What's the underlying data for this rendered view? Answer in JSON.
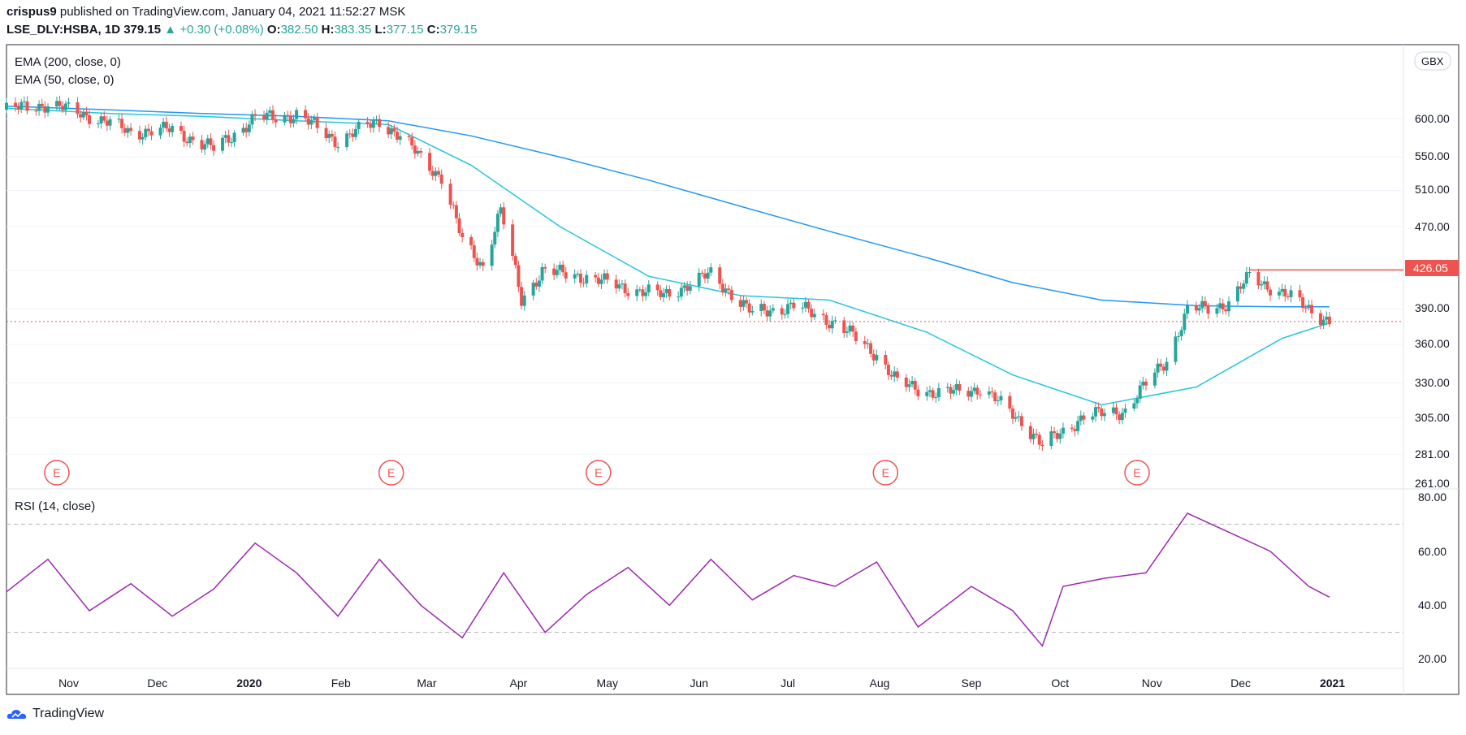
{
  "header": {
    "author": "crispus9",
    "published_text": "published on TradingView.com, January 04, 2021 11:52:27 MSK",
    "symbol": "LSE_DLY:HSBA, 1D",
    "last": "379.15",
    "change_arrow": "▲",
    "change": "+0.30 (+0.08%)",
    "o_label": "O:",
    "o_value": "382.50",
    "h_label": "H:",
    "h_value": "383.35",
    "l_label": "L:",
    "l_value": "377.15",
    "c_label": "C:",
    "c_value": "379.15"
  },
  "price_pane": {
    "legend": [
      "EMA (200, close, 0)",
      "EMA (50, close, 0)"
    ],
    "currency": "GBX",
    "y_ticks": [
      "600.00",
      "550.00",
      "510.00",
      "470.00",
      "390.00",
      "360.00",
      "330.00",
      "305.00",
      "281.00",
      "261.00"
    ],
    "last_price_tag": "426.05",
    "earnings_marker": "E"
  },
  "rsi_pane": {
    "legend": "RSI (14, close)",
    "y_ticks": [
      "80.00",
      "60.00",
      "40.00",
      "20.00"
    ]
  },
  "x_axis": [
    "Nov",
    "Dec",
    "2020",
    "Feb",
    "Mar",
    "Apr",
    "May",
    "Jun",
    "Jul",
    "Aug",
    "Sep",
    "Oct",
    "Nov",
    "Dec",
    "2021"
  ],
  "footer": {
    "brand": "TradingView"
  },
  "colors": {
    "up": "#26a69a",
    "down": "#ef5350",
    "ema200": "#2196f3",
    "ema50": "#26c6da",
    "rsi": "#9c27b0",
    "earnings": "#ef5350",
    "price_line": "#ef5350"
  },
  "chart_data": {
    "type": "candlestick",
    "scale": "log",
    "ylim": [
      261,
      640
    ],
    "rsi_ylim": [
      20,
      80
    ],
    "rsi_bands": [
      70,
      30
    ],
    "x_range": [
      "2019-10-11",
      "2021-01-25"
    ],
    "last_close": 379.15,
    "horizontal_line": 426.05,
    "earnings_dates": [
      "2019-10-28",
      "2020-02-18",
      "2020-04-28",
      "2020-08-03",
      "2020-10-27"
    ],
    "series": [
      {
        "name": "EMA (200, close, 0)",
        "dates": [
          "2019-10-11",
          "2019-11-15",
          "2019-12-16",
          "2020-01-17",
          "2020-02-17",
          "2020-03-16",
          "2020-04-15",
          "2020-05-15",
          "2020-06-15",
          "2020-07-15",
          "2020-08-17",
          "2020-09-15",
          "2020-10-15",
          "2020-11-16",
          "2020-12-15",
          "2020-12-31"
        ],
        "values": [
          617,
          612,
          607,
          603,
          597,
          577,
          550,
          522,
          492,
          465,
          438,
          414,
          398,
          393,
          392,
          392
        ]
      },
      {
        "name": "EMA (50, close, 0)",
        "dates": [
          "2019-10-11",
          "2019-11-15",
          "2019-12-16",
          "2020-01-17",
          "2020-02-17",
          "2020-03-16",
          "2020-04-15",
          "2020-05-15",
          "2020-06-15",
          "2020-07-15",
          "2020-08-17",
          "2020-09-15",
          "2020-10-15",
          "2020-11-16",
          "2020-12-15",
          "2020-12-31"
        ],
        "values": [
          614,
          607,
          603,
          597,
          592,
          540,
          470,
          420,
          402,
          398,
          370,
          336,
          314,
          327,
          365,
          378
        ]
      },
      {
        "name": "RSI (14, close)",
        "dates": [
          "2019-10-11",
          "2019-10-25",
          "2019-11-08",
          "2019-11-22",
          "2019-12-06",
          "2019-12-20",
          "2020-01-03",
          "2020-01-17",
          "2020-01-31",
          "2020-02-14",
          "2020-02-28",
          "2020-03-13",
          "2020-03-27",
          "2020-04-10",
          "2020-04-24",
          "2020-05-08",
          "2020-05-22",
          "2020-06-05",
          "2020-06-19",
          "2020-07-03",
          "2020-07-17",
          "2020-07-31",
          "2020-08-14",
          "2020-09-01",
          "2020-09-15",
          "2020-09-25",
          "2020-10-02",
          "2020-10-16",
          "2020-10-30",
          "2020-11-13",
          "2020-11-27",
          "2020-12-11",
          "2020-12-24",
          "2020-12-31"
        ],
        "values": [
          45,
          57,
          38,
          48,
          36,
          46,
          63,
          52,
          36,
          57,
          40,
          28,
          52,
          30,
          44,
          54,
          40,
          57,
          42,
          51,
          47,
          56,
          32,
          47,
          38,
          25,
          47,
          50,
          52,
          74,
          67,
          60,
          47,
          43
        ]
      },
      {
        "name": "Daily close",
        "dates": [
          "2019-10-11",
          "2019-10-25",
          "2019-11-08",
          "2019-11-22",
          "2019-12-06",
          "2019-12-20",
          "2020-01-03",
          "2020-01-17",
          "2020-01-31",
          "2020-02-14",
          "2020-02-21",
          "2020-03-06",
          "2020-03-13",
          "2020-03-20",
          "2020-03-26",
          "2020-04-02",
          "2020-04-09",
          "2020-04-23",
          "2020-05-06",
          "2020-05-20",
          "2020-06-05",
          "2020-06-19",
          "2020-07-03",
          "2020-07-17",
          "2020-07-31",
          "2020-08-07",
          "2020-08-21",
          "2020-09-04",
          "2020-09-18",
          "2020-09-25",
          "2020-10-09",
          "2020-10-23",
          "2020-11-06",
          "2020-11-13",
          "2020-11-27",
          "2020-12-04",
          "2020-12-18",
          "2020-12-31"
        ],
        "values": [
          612,
          620,
          604,
          582,
          585,
          560,
          600,
          605,
          570,
          598,
          575,
          525,
          455,
          430,
          487,
          398,
          425,
          420,
          410,
          402,
          422,
          386,
          393,
          378,
          352,
          330,
          322,
          326,
          303,
          286,
          306,
          310,
          348,
          388,
          395,
          420,
          400,
          379.15
        ]
      }
    ]
  }
}
